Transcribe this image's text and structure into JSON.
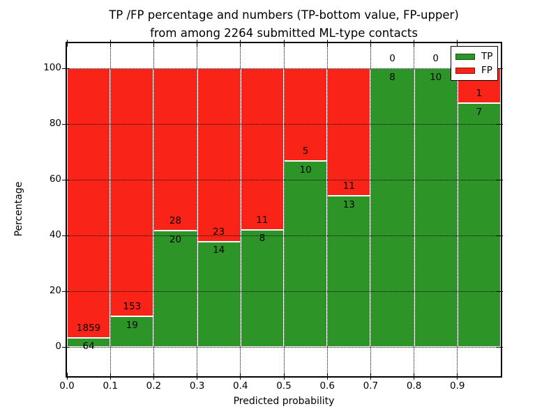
{
  "title": {
    "line1": "TP /FP percentage and numbers (TP-bottom value, FP-upper)",
    "line2": "from among 2264 submitted ML-type contacts"
  },
  "chart_data": {
    "type": "bar",
    "stacked": true,
    "normalized": "percent",
    "title": "TP /FP percentage and numbers (TP-bottom value, FP-upper) from among 2264 submitted ML-type contacts",
    "xlabel": "Predicted probability",
    "ylabel": "Percentage",
    "total_contacts": 2264,
    "bin_width": 0.1,
    "bin_starts": [
      0.0,
      0.1,
      0.2,
      0.3,
      0.4,
      0.5,
      0.6,
      0.7,
      0.8,
      0.9
    ],
    "series": [
      {
        "name": "TP",
        "color": "#2d9428",
        "counts": [
          64,
          19,
          20,
          14,
          8,
          10,
          13,
          8,
          10,
          7
        ]
      },
      {
        "name": "FP",
        "color": "#fa2317",
        "counts": [
          1859,
          153,
          28,
          23,
          11,
          5,
          11,
          0,
          0,
          1
        ]
      }
    ],
    "tp_percent_approx": [
      3.3,
      11.0,
      41.7,
      37.8,
      42.1,
      66.7,
      54.2,
      100.0,
      100.0,
      87.5
    ],
    "x_tick_labels": [
      "0.0",
      "0.1",
      "0.2",
      "0.3",
      "0.4",
      "0.5",
      "0.6",
      "0.7",
      "0.8",
      "0.9"
    ],
    "y_ticks": [
      0,
      20,
      40,
      60,
      80,
      100
    ],
    "xlim": [
      0.0,
      1.0
    ],
    "ylim": [
      -10.5,
      109
    ],
    "grid": "dotted black, above bars",
    "legend_position": "upper right",
    "bar_edge_color": "#ffffff"
  },
  "legend": {
    "entries": [
      {
        "label": "TP",
        "color": "#2d9428"
      },
      {
        "label": "FP",
        "color": "#fa2317"
      }
    ]
  },
  "colors": {
    "tp_green": "#2d9428",
    "fp_red": "#fa2317",
    "axis": "#000000",
    "background": "#ffffff"
  }
}
